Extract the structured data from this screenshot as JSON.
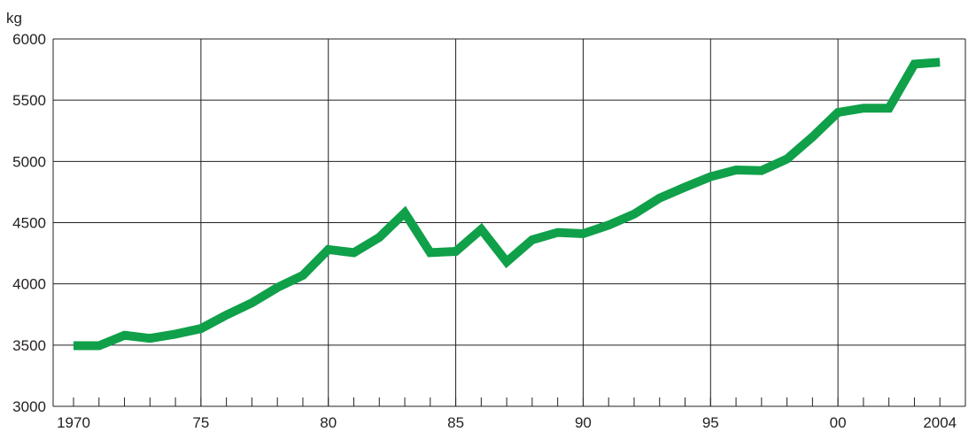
{
  "chart_data": {
    "type": "line",
    "title": "",
    "xlabel": "",
    "ylabel": "kg",
    "xlim": [
      1969.2,
      2005
    ],
    "ylim": [
      3000,
      6000
    ],
    "grid": true,
    "legend": "none",
    "line_color": "#0fa049",
    "grid_color": "#231f20",
    "yticks": [
      {
        "value": 3000,
        "label": "3000"
      },
      {
        "value": 3500,
        "label": "3500"
      },
      {
        "value": 4000,
        "label": "4000"
      },
      {
        "value": 4500,
        "label": "4500"
      },
      {
        "value": 5000,
        "label": "5000"
      },
      {
        "value": 5500,
        "label": "5500"
      },
      {
        "value": 6000,
        "label": "6000"
      }
    ],
    "xticks": [
      {
        "value": 1970,
        "label": "1970"
      },
      {
        "value": 1975,
        "label": "75"
      },
      {
        "value": 1980,
        "label": "80"
      },
      {
        "value": 1985,
        "label": "85"
      },
      {
        "value": 1990,
        "label": "90"
      },
      {
        "value": 1995,
        "label": "95"
      },
      {
        "value": 2000,
        "label": "00"
      },
      {
        "value": 2004,
        "label": "2004"
      }
    ],
    "x_gridlines": [
      1975,
      1980,
      1985,
      1990,
      1995,
      2000
    ],
    "series": [
      {
        "x": [
          1970,
          1971,
          1972,
          1973,
          1974,
          1975,
          1976,
          1977,
          1978,
          1979,
          1980,
          1981,
          1982,
          1983,
          1984,
          1985,
          1986,
          1987,
          1988,
          1989,
          1990,
          1991,
          1992,
          1993,
          1994,
          1995,
          1996,
          1997,
          1998,
          1999,
          2000,
          2001,
          2002,
          2003,
          2004
        ],
        "values": [
          3495,
          3495,
          3580,
          3555,
          3590,
          3635,
          3745,
          3845,
          3970,
          4070,
          4280,
          4255,
          4380,
          4580,
          4255,
          4265,
          4445,
          4180,
          4360,
          4420,
          4410,
          4480,
          4570,
          4700,
          4790,
          4875,
          4930,
          4925,
          5020,
          5200,
          5400,
          5435,
          5435,
          5795,
          5810
        ]
      }
    ]
  }
}
